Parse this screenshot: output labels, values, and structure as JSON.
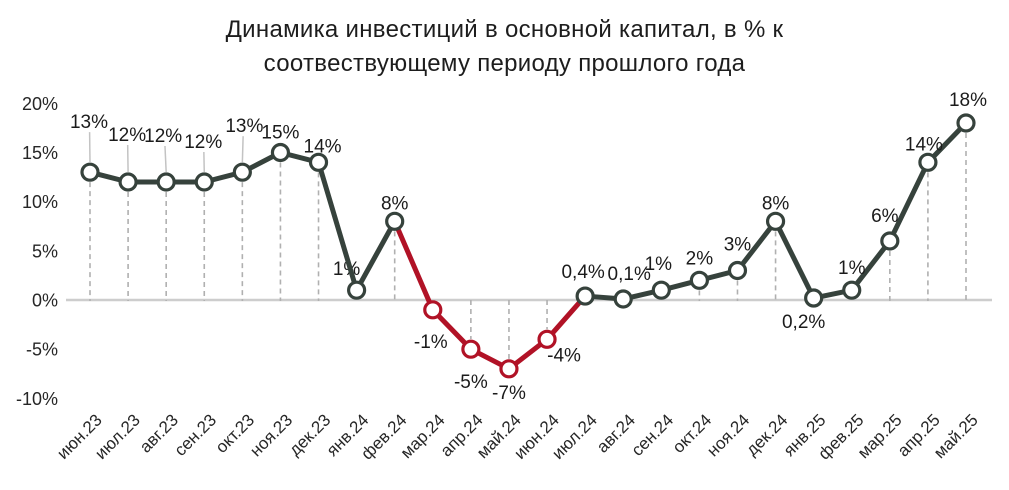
{
  "title": {
    "line1": "Динамика инвестиций в основной капитал, в % к",
    "line2": "соотвествующему периоду прошлого года"
  },
  "colors": {
    "line": "#36423c",
    "decline_line": "#b11226",
    "marker_fill": "#ffffff",
    "zero_axis_line": "#cdcdcd",
    "drop_line": "#b0b0b0",
    "leader_line": "#c3c3c3",
    "label_text": "#1b1b1b",
    "axis_text": "#262626",
    "title_text": "#1d1d1d"
  },
  "chart_data": {
    "type": "line",
    "title": "Динамика инвестиций в основной капитал, в % к соотвествующему периоду прошлого года",
    "categories": [
      "июн.23",
      "июл.23",
      "авг.23",
      "сен.23",
      "окт.23",
      "ноя.23",
      "дек.23",
      "янв.24",
      "фев.24",
      "мар.24",
      "апр.24",
      "май.24",
      "июн.24",
      "июл.24",
      "авг.24",
      "сен.24",
      "окт.24",
      "ноя.24",
      "дек.24",
      "янв.25",
      "фев.25",
      "мар.25",
      "апр.25",
      "май.25"
    ],
    "values": [
      13,
      12,
      12,
      12,
      13,
      15,
      14,
      1,
      8,
      -1,
      -5,
      -7,
      -4,
      0.4,
      0.1,
      1,
      2,
      3,
      8,
      0.2,
      1,
      6,
      14,
      18
    ],
    "point_labels": [
      "13%",
      "12%",
      "12%",
      "12%",
      "13%",
      "15%",
      "14%",
      "1%",
      "8%",
      "-1%",
      "-5%",
      "-7%",
      "-4%",
      "0,4%",
      "0,1%",
      "1%",
      "2%",
      "3%",
      "8%",
      "0,2%",
      "1%",
      "6%",
      "14%",
      "18%"
    ],
    "y_ticks": [
      {
        "label": "20%",
        "value": 20
      },
      {
        "label": "15%",
        "value": 15
      },
      {
        "label": "10%",
        "value": 10
      },
      {
        "label": "5%",
        "value": 5
      },
      {
        "label": "0%",
        "value": 0
      },
      {
        "label": "-5%",
        "value": -5
      },
      {
        "label": "-10%",
        "value": -10
      }
    ],
    "ylim": [
      -10,
      20
    ],
    "grid": "zero-line-only",
    "legend": "none",
    "red_segments": [
      [
        8,
        13
      ]
    ],
    "red_point_indices": [
      9,
      10,
      11,
      12
    ]
  }
}
